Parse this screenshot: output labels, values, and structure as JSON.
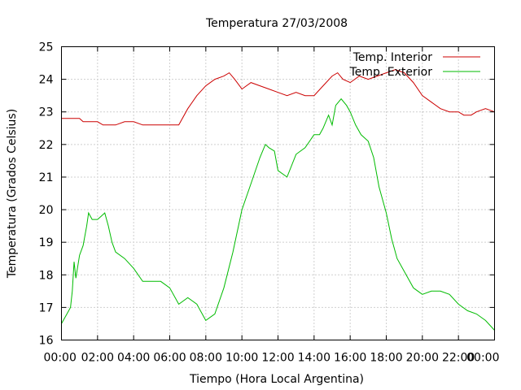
{
  "chart_data": {
    "type": "line",
    "title": "Temperatura 27/03/2008",
    "xlabel": "Tiempo (Hora Local Argentina)",
    "ylabel": "Temperatura (Grados Celsius)",
    "xlim": [
      0,
      24
    ],
    "ylim": [
      16,
      25
    ],
    "x_tick_labels": [
      "00:00",
      "02:00",
      "04:00",
      "06:00",
      "08:00",
      "10:00",
      "12:00",
      "14:00",
      "16:00",
      "18:00",
      "20:00",
      "22:00",
      "00:00"
    ],
    "y_tick_labels": [
      "16",
      "17",
      "18",
      "19",
      "20",
      "21",
      "22",
      "23",
      "24",
      "25"
    ],
    "grid": true,
    "legend_position": "top-right",
    "series": [
      {
        "name": "Temp. Interior",
        "color": "#cc0000",
        "x": [
          0,
          1,
          1.2,
          2,
          2.3,
          3,
          3.5,
          4,
          4.5,
          5,
          6,
          6.5,
          7,
          7.5,
          8,
          8.5,
          9,
          9.3,
          9.6,
          10,
          10.5,
          11,
          11.5,
          12,
          12.5,
          13,
          13.5,
          14,
          14.5,
          15,
          15.3,
          15.6,
          16,
          16.5,
          17,
          17.5,
          18,
          18.5,
          19,
          19.5,
          20,
          20.5,
          21,
          21.5,
          22,
          22.3,
          22.7,
          23,
          23.5,
          24
        ],
        "y": [
          22.8,
          22.8,
          22.7,
          22.7,
          22.6,
          22.6,
          22.7,
          22.7,
          22.6,
          22.6,
          22.6,
          22.6,
          23.1,
          23.5,
          23.8,
          24,
          24.1,
          24.2,
          24,
          23.7,
          23.9,
          23.8,
          23.7,
          23.6,
          23.5,
          23.6,
          23.5,
          23.5,
          23.8,
          24.1,
          24.2,
          24,
          23.9,
          24.1,
          24,
          24.1,
          24.2,
          24.3,
          24.2,
          23.9,
          23.5,
          23.3,
          23.1,
          23,
          23,
          22.9,
          22.9,
          23,
          23.1,
          23
        ]
      },
      {
        "name": "Temp. Exterior",
        "color": "#00bb00",
        "x": [
          0,
          0.3,
          0.5,
          0.6,
          0.7,
          0.8,
          1,
          1.2,
          1.4,
          1.5,
          1.7,
          1.9,
          2,
          2.2,
          2.4,
          2.6,
          2.8,
          3,
          3.5,
          4,
          4.5,
          5,
          5.5,
          6,
          6.5,
          7,
          7.5,
          8,
          8.5,
          9,
          9.5,
          10,
          10.5,
          11,
          11.3,
          11.5,
          11.8,
          12,
          12.5,
          13,
          13.5,
          14,
          14.3,
          14.5,
          14.8,
          15,
          15.2,
          15.5,
          15.8,
          16,
          16.3,
          16.6,
          17,
          17.3,
          17.6,
          18,
          18.3,
          18.6,
          19,
          19.5,
          20,
          20.5,
          21,
          21.5,
          22,
          22.5,
          23,
          23.5,
          24
        ],
        "y": [
          16.5,
          16.8,
          17,
          17.5,
          18.4,
          17.9,
          18.6,
          18.9,
          19.5,
          19.9,
          19.7,
          19.7,
          19.7,
          19.8,
          19.9,
          19.5,
          19,
          18.7,
          18.5,
          18.2,
          17.8,
          17.8,
          17.8,
          17.6,
          17.1,
          17.3,
          17.1,
          16.6,
          16.8,
          17.6,
          18.7,
          20,
          20.8,
          21.6,
          22,
          21.9,
          21.8,
          21.2,
          21,
          21.7,
          21.9,
          22.3,
          22.3,
          22.5,
          22.9,
          22.6,
          23.2,
          23.4,
          23.2,
          23,
          22.6,
          22.3,
          22.1,
          21.6,
          20.7,
          19.9,
          19.1,
          18.5,
          18.1,
          17.6,
          17.4,
          17.5,
          17.5,
          17.4,
          17.1,
          16.9,
          16.8,
          16.6,
          16.3
        ]
      }
    ]
  }
}
